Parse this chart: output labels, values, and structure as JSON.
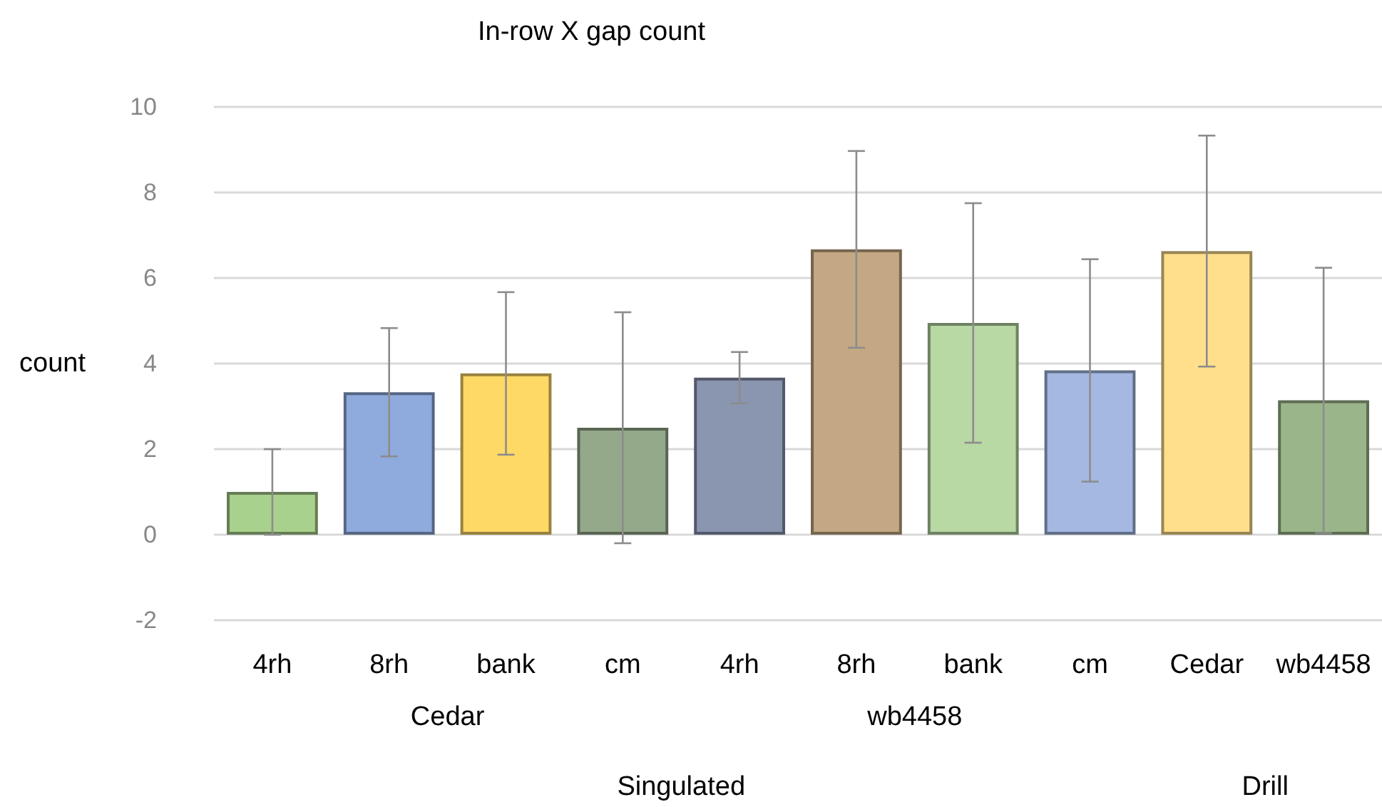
{
  "chart_data": {
    "type": "bar",
    "title": "In-row X gap count",
    "ylabel": "count",
    "categories": [
      "4rh",
      "8rh",
      "bank",
      "cm",
      "4rh",
      "8rh",
      "bank",
      "cm",
      "Cedar",
      "wb4458"
    ],
    "values": [
      1.0,
      3.33,
      3.77,
      2.5,
      3.67,
      6.67,
      4.95,
      3.84,
      6.63,
      3.14
    ],
    "errors": [
      1.0,
      1.5,
      1.9,
      2.7,
      0.6,
      2.3,
      2.8,
      2.6,
      2.7,
      3.1
    ],
    "colors": [
      "#a9d18e",
      "#8faadc",
      "#ffd966",
      "#94a88a",
      "#8a95b0",
      "#c4a883",
      "#b8d8a4",
      "#a4b8e2",
      "#ffdf8c",
      "#9bb58a"
    ],
    "annotations": [
      "Cedar",
      "wb4458",
      "Singulated",
      "Drill"
    ],
    "ylim": [
      -2,
      10
    ],
    "yticks": [
      -2,
      0,
      2,
      4,
      6,
      8,
      10
    ],
    "grid": "y"
  }
}
